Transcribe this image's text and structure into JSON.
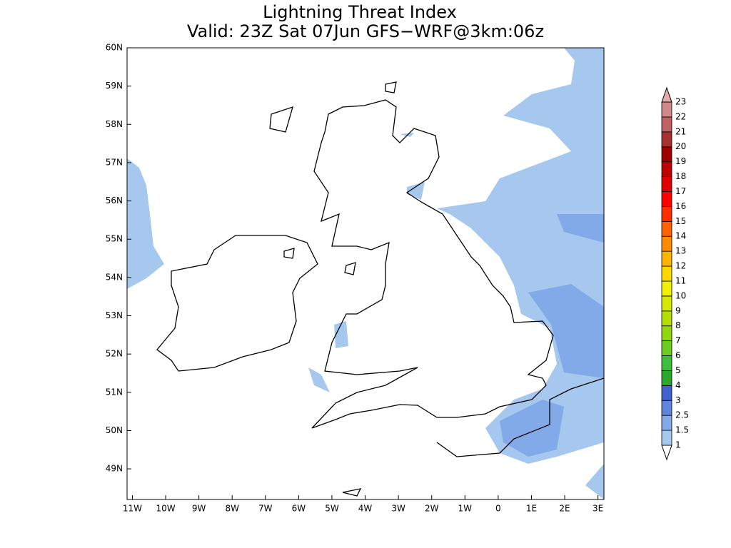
{
  "title": "Lightning Threat Index",
  "subtitle": "Valid: 23Z Sat 07Jun GFS−WRF@3km:06z",
  "map": {
    "xlim": [
      -11.16,
      3.18
    ],
    "ylim": [
      48.2,
      60
    ],
    "xticks": [
      {
        "value": -11,
        "label": "11W"
      },
      {
        "value": -10,
        "label": "10W"
      },
      {
        "value": -9,
        "label": "9W"
      },
      {
        "value": -8,
        "label": "8W"
      },
      {
        "value": -7,
        "label": "7W"
      },
      {
        "value": -6,
        "label": "6W"
      },
      {
        "value": -5,
        "label": "5W"
      },
      {
        "value": -4,
        "label": "4W"
      },
      {
        "value": -3,
        "label": "3W"
      },
      {
        "value": -2,
        "label": "2W"
      },
      {
        "value": -1,
        "label": "1W"
      },
      0,
      {
        "value": 1,
        "label": "1E"
      },
      {
        "value": 2,
        "label": "2E"
      },
      {
        "value": 3,
        "label": "3E"
      }
    ],
    "yticks": [
      {
        "value": 49,
        "label": "49N"
      },
      {
        "value": 50,
        "label": "50N"
      },
      {
        "value": 51,
        "label": "51N"
      },
      {
        "value": 52,
        "label": "52N"
      },
      {
        "value": 53,
        "label": "53N"
      },
      {
        "value": 54,
        "label": "54N"
      },
      {
        "value": 55,
        "label": "55N"
      },
      {
        "value": 56,
        "label": "56N"
      },
      {
        "value": 57,
        "label": "57N"
      },
      {
        "value": 58,
        "label": "58N"
      },
      {
        "value": 59,
        "label": "59N"
      },
      {
        "value": 60,
        "label": "60N"
      }
    ]
  },
  "colorbar": {
    "levels": [
      1,
      1.5,
      2.5,
      3,
      4,
      5,
      6,
      7,
      8,
      9,
      10,
      11,
      12,
      13,
      14,
      15,
      16,
      17,
      18,
      19,
      20,
      21,
      22,
      23
    ],
    "colors": [
      "#ffffff",
      "#a6c8ee",
      "#82a9e8",
      "#5f86dc",
      "#4062cc",
      "#2ca82c",
      "#3cc03c",
      "#6ccc22",
      "#92d610",
      "#b4de00",
      "#d4e800",
      "#f2f000",
      "#ffd800",
      "#ffb400",
      "#ff8c00",
      "#ff6000",
      "#ff3000",
      "#ff0000",
      "#e00000",
      "#c00000",
      "#a00000",
      "#a83232",
      "#c06262",
      "#d08888",
      "#e4aaaa"
    ]
  }
}
